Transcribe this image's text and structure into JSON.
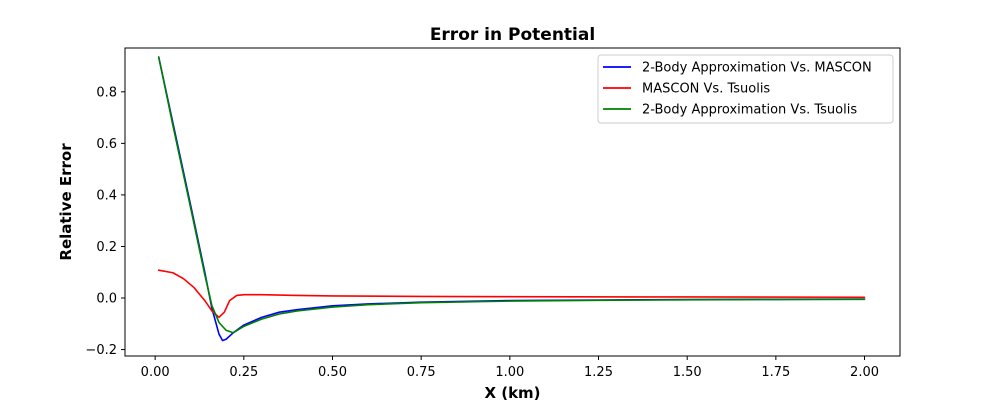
{
  "chart_data": {
    "type": "line",
    "title": "Error in Potential",
    "xlabel": "X (km)",
    "ylabel": "Relative Error",
    "xlim": [
      -0.085,
      2.1
    ],
    "ylim": [
      -0.225,
      0.97
    ],
    "xticks": [
      0.0,
      0.25,
      0.5,
      0.75,
      1.0,
      1.25,
      1.5,
      1.75,
      2.0
    ],
    "xtick_labels": [
      "0.00",
      "0.25",
      "0.50",
      "0.75",
      "1.00",
      "1.25",
      "1.50",
      "1.75",
      "2.00"
    ],
    "yticks": [
      -0.2,
      0.0,
      0.2,
      0.4,
      0.6,
      0.8
    ],
    "ytick_labels": [
      "−0.2",
      "0.0",
      "0.2",
      "0.4",
      "0.6",
      "0.8"
    ],
    "grid": false,
    "legend_position": "top-right",
    "series": [
      {
        "name": "2-Body Approximation Vs. MASCON",
        "color": "#0000ff",
        "x": [
          0.01,
          0.05,
          0.1,
          0.14,
          0.16,
          0.18,
          0.19,
          0.2,
          0.22,
          0.25,
          0.3,
          0.35,
          0.4,
          0.5,
          0.6,
          0.75,
          1.0,
          1.25,
          1.5,
          1.75,
          2.0
        ],
        "y": [
          0.935,
          0.68,
          0.36,
          0.1,
          -0.04,
          -0.14,
          -0.165,
          -0.16,
          -0.135,
          -0.105,
          -0.075,
          -0.055,
          -0.045,
          -0.03,
          -0.023,
          -0.016,
          -0.01,
          -0.008,
          -0.006,
          -0.005,
          -0.004
        ]
      },
      {
        "name": "MASCON Vs. Tsuolis",
        "color": "#ff0000",
        "x": [
          0.01,
          0.05,
          0.08,
          0.11,
          0.14,
          0.16,
          0.18,
          0.195,
          0.21,
          0.23,
          0.25,
          0.3,
          0.4,
          0.5,
          0.75,
          1.0,
          1.5,
          2.0
        ],
        "y": [
          0.108,
          0.098,
          0.075,
          0.04,
          -0.01,
          -0.05,
          -0.075,
          -0.055,
          -0.01,
          0.01,
          0.013,
          0.013,
          0.01,
          0.008,
          0.006,
          0.005,
          0.004,
          0.003
        ]
      },
      {
        "name": "2-Body Approximation Vs. Tsuolis",
        "color": "#008000",
        "x": [
          0.01,
          0.05,
          0.1,
          0.14,
          0.16,
          0.18,
          0.2,
          0.22,
          0.25,
          0.3,
          0.35,
          0.4,
          0.5,
          0.6,
          0.75,
          1.0,
          1.25,
          1.5,
          1.75,
          2.0
        ],
        "y": [
          0.935,
          0.67,
          0.35,
          0.09,
          -0.03,
          -0.095,
          -0.125,
          -0.135,
          -0.11,
          -0.082,
          -0.062,
          -0.05,
          -0.035,
          -0.026,
          -0.018,
          -0.012,
          -0.009,
          -0.007,
          -0.006,
          -0.005
        ]
      }
    ]
  }
}
